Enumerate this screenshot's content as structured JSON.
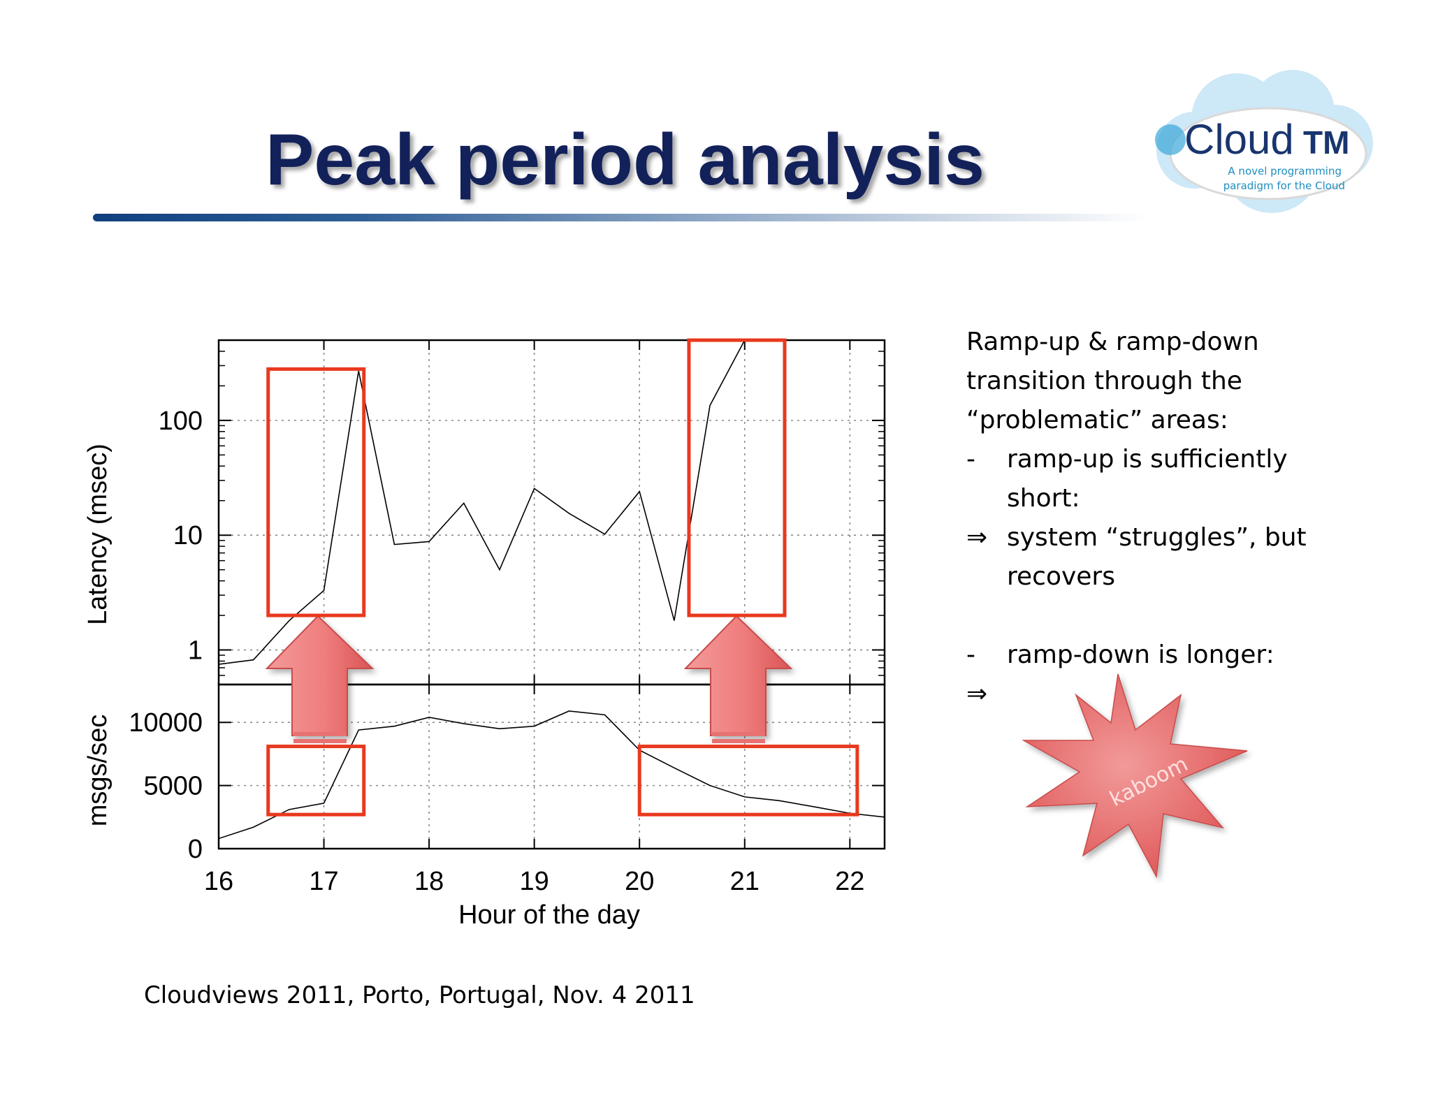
{
  "slide": {
    "title": "Peak period analysis",
    "footer": "Cloudviews 2011, Porto, Portugal, Nov. 4 2011",
    "logo": {
      "icon": "cloud-logo-icon",
      "name": "Cloud",
      "name_suffix": "TM",
      "tagline_1": "A novel programming",
      "tagline_2": "paradigm for the Cloud",
      "colors": {
        "cloud": "#cde8f7",
        "text": "#18356e",
        "accent": "#1f8fbf"
      }
    },
    "notes": [
      {
        "mark": "",
        "text": "Ramp-up & ramp-down",
        "style": "plain"
      },
      {
        "mark": "",
        "text": "transition through the",
        "style": "plain"
      },
      {
        "mark": "",
        "text": "“problematic” areas:",
        "style": "plain"
      },
      {
        "mark": "-",
        "text": "ramp-up is sufficiently",
        "style": "indent"
      },
      {
        "mark": "",
        "text": "short:",
        "style": "indent"
      },
      {
        "mark": "⇒",
        "text": "system “struggles”, but",
        "style": "indent"
      },
      {
        "mark": "",
        "text": "recovers",
        "style": "indent"
      },
      {
        "mark": "",
        "text": "",
        "style": "gap"
      },
      {
        "mark": "-",
        "text": "ramp-down is longer:",
        "style": "indent"
      },
      {
        "mark": "⇒",
        "text": "",
        "style": "indent"
      }
    ],
    "kaboom": {
      "label": "kaboom",
      "icon": "starburst-icon",
      "color": "#e86a6a"
    },
    "highlight_color": "#e8391e",
    "arrow_color": "#e87272"
  },
  "chart_data": [
    {
      "type": "line",
      "ylabel": "Latency (msec)",
      "yscale": "log",
      "ylim": [
        0.5,
        500
      ],
      "xlim": [
        16,
        22.33
      ],
      "yticks": [
        {
          "value": 1,
          "label": "1"
        },
        {
          "value": 10,
          "label": "10"
        },
        {
          "value": 100,
          "label": "100"
        }
      ],
      "grid": true,
      "x": [
        16.0,
        16.33,
        16.67,
        17.0,
        17.33,
        17.67,
        18.0,
        18.33,
        18.67,
        19.0,
        19.33,
        19.67,
        20.0,
        20.33,
        20.67,
        21.0
      ],
      "series": [
        {
          "values": [
            0.75,
            0.82,
            1.8,
            3.3,
            270,
            8.3,
            8.8,
            19,
            5,
            25.5,
            15.5,
            10.2,
            24,
            1.8,
            135,
            500
          ]
        }
      ]
    },
    {
      "type": "line",
      "ylabel": "msgs/sec",
      "xlabel": "Hour of the day",
      "ylim": [
        0,
        13000
      ],
      "xlim": [
        16,
        22.33
      ],
      "yticks": [
        {
          "value": 0,
          "label": "0"
        },
        {
          "value": 5000,
          "label": "5000"
        },
        {
          "value": 10000,
          "label": "10000"
        }
      ],
      "xticks": [
        {
          "value": 16,
          "label": "16"
        },
        {
          "value": 17,
          "label": "17"
        },
        {
          "value": 18,
          "label": "18"
        },
        {
          "value": 19,
          "label": "19"
        },
        {
          "value": 20,
          "label": "20"
        },
        {
          "value": 21,
          "label": "21"
        },
        {
          "value": 22,
          "label": "22"
        }
      ],
      "grid": true,
      "x": [
        16.0,
        16.33,
        16.67,
        17.0,
        17.33,
        17.67,
        18.0,
        18.33,
        18.67,
        19.0,
        19.33,
        19.67,
        20.0,
        20.33,
        20.67,
        21.0,
        21.33,
        21.67,
        22.0,
        22.33
      ],
      "series": [
        {
          "values": [
            800,
            1700,
            3100,
            3600,
            9400,
            9700,
            10400,
            9900,
            9500,
            9700,
            10900,
            10600,
            7800,
            6400,
            5000,
            4100,
            3800,
            3300,
            2800,
            2500
          ]
        }
      ]
    }
  ],
  "highlights": [
    {
      "panel": "top",
      "x": [
        16.47,
        17.38
      ],
      "y": [
        2,
        280
      ]
    },
    {
      "panel": "top",
      "x": [
        20.47,
        21.38
      ],
      "y": [
        2,
        500
      ]
    },
    {
      "panel": "bottom",
      "x": [
        16.47,
        17.38
      ],
      "y": [
        2700,
        8100
      ]
    },
    {
      "panel": "bottom",
      "x": [
        20.0,
        22.07
      ],
      "y": [
        2700,
        8100
      ]
    }
  ]
}
